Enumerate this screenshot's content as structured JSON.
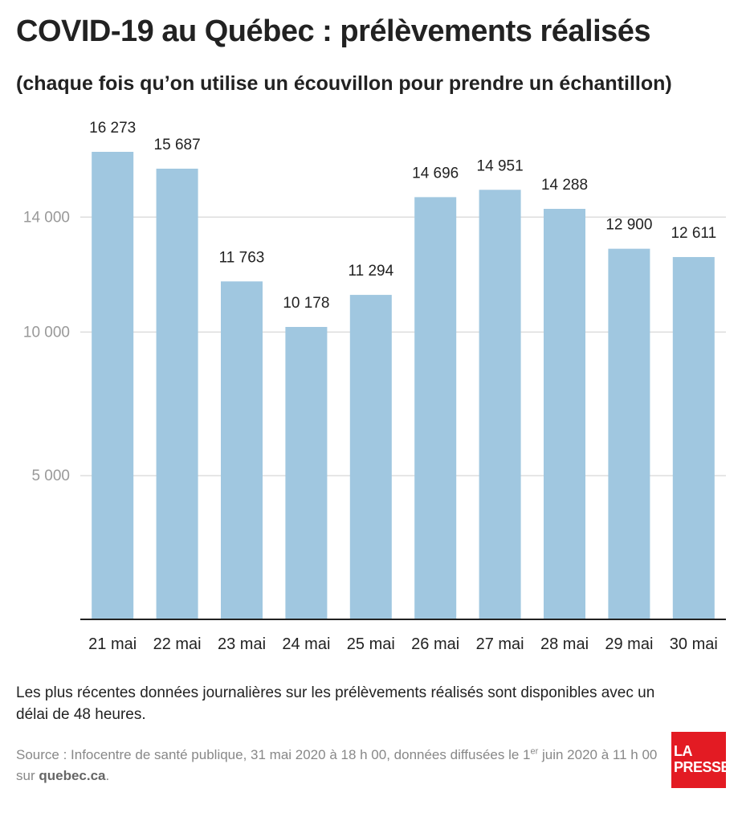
{
  "title": "COVID-19 au Québec : prélèvements réalisés",
  "subtitle": "(chaque fois qu’on utilise un écouvillon pour prendre un échantillon)",
  "note": "Les plus récentes données journalières sur les prélèvements réalisés sont disponibles avec un délai de 48 heures.",
  "source": {
    "prefix": "Source : Infocentre de santé publique, 31 mai 2020 à 18 h 00, données diffusées le 1",
    "sup": "er",
    "middle": " juin 2020 à 11 h 00 sur ",
    "link": "quebec.ca",
    "suffix": "."
  },
  "logo": {
    "line1": "LA",
    "line2": "PRESSE",
    "color": "#e31b23"
  },
  "chart_data": {
    "type": "bar",
    "categories": [
      "21 mai",
      "22 mai",
      "23 mai",
      "24 mai",
      "25 mai",
      "26 mai",
      "27 mai",
      "28 mai",
      "29 mai",
      "30 mai"
    ],
    "values": [
      16273,
      15687,
      11763,
      10178,
      11294,
      14696,
      14951,
      14288,
      12900,
      12611
    ],
    "value_labels": [
      "16 273",
      "15 687",
      "11 763",
      "10 178",
      "11 294",
      "14 696",
      "14 951",
      "14 288",
      "12 900",
      "12 611"
    ],
    "y_ticks": [
      5000,
      10000,
      14000
    ],
    "y_tick_labels": [
      "5 000",
      "10 000",
      "14 000"
    ],
    "ylim": [
      0,
      17500
    ],
    "grid": true,
    "bar_color": "#a0c7e0",
    "xlabel": "",
    "ylabel": ""
  }
}
